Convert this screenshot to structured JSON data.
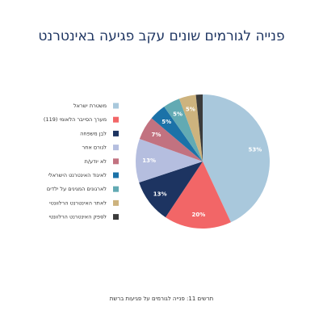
{
  "chart_data": {
    "type": "pie",
    "title": "פנייה לגורמים שונים עקב פגיעה באינטרנט",
    "categories": [
      "משטרת ישראל",
      "מערך הסייבר הלאומי (119)",
      "לבן משפחה",
      "לגורם אחר",
      "לא יודע/ת",
      "לאיגוד האינטרנט הישראלי",
      "לארגונים המגינים על ילדים",
      "לאתר האינטרנט הרלוונטי",
      "לספק האינטרנט הרלוונטי"
    ],
    "values": [
      53,
      20,
      13,
      13,
      7,
      5,
      5,
      5,
      2
    ],
    "value_labels": [
      "53%",
      "20%",
      "13%",
      "13%",
      "7%",
      "5%",
      "5%",
      "5%",
      null
    ],
    "colors": [
      "#a9c8dc",
      "#f26667",
      "#1d3461",
      "#b5bedf",
      "#c27280",
      "#1b72a8",
      "#62aab3",
      "#cdb37e",
      "#3b3b3b"
    ],
    "footnote": "תרשים 11: פנייה לגורמים על פגיעות ברשת"
  }
}
